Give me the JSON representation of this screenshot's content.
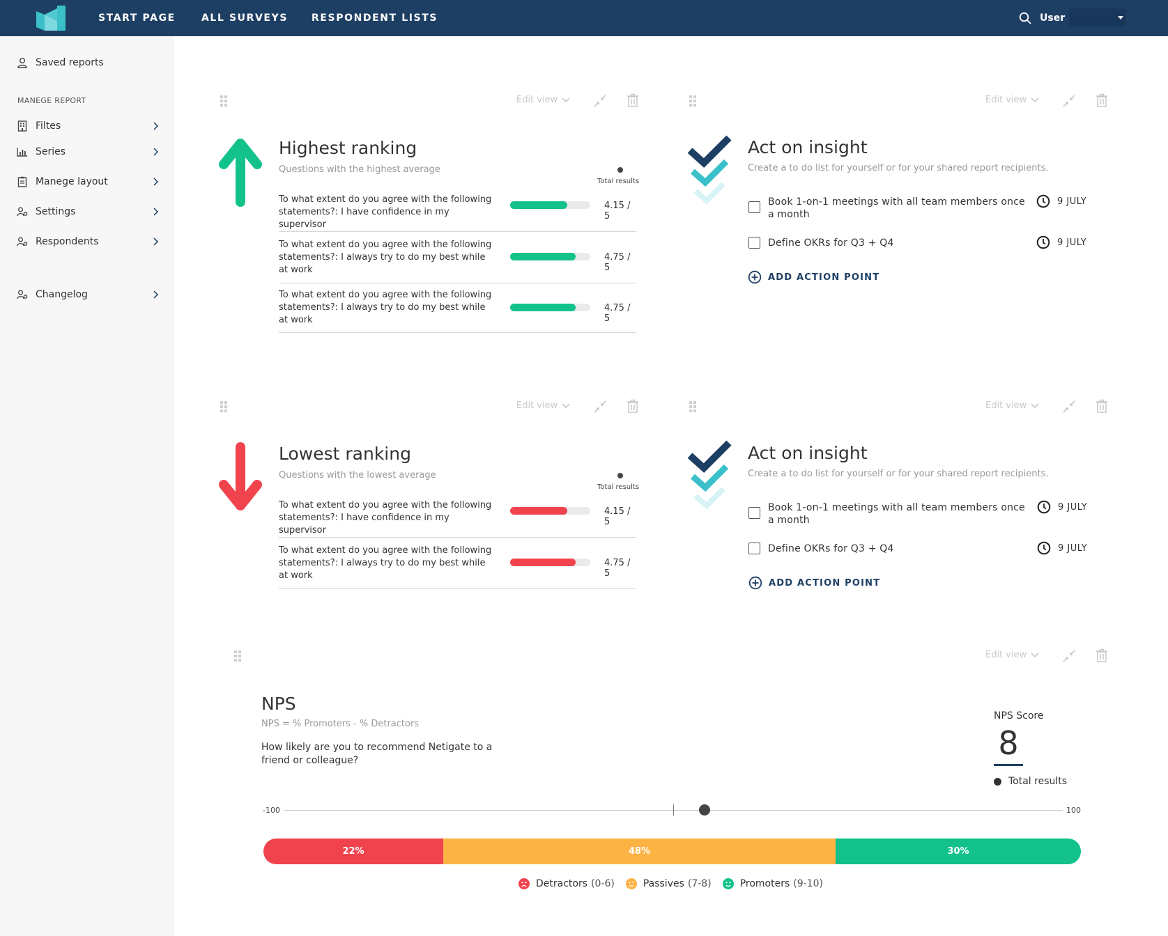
{
  "topnav": {
    "items": [
      "START PAGE",
      "ALL SURVEYS",
      "RESPONDENT LISTS"
    ],
    "user_label": "User"
  },
  "sidebar": {
    "saved_reports": "Saved reports",
    "section_title": "MANEGE REPORT",
    "items": [
      {
        "label": "Filtes",
        "icon": "building-icon"
      },
      {
        "label": "Series",
        "icon": "bar-chart-icon"
      },
      {
        "label": "Manege layout",
        "icon": "clipboard-icon"
      },
      {
        "label": "Settings",
        "icon": "user-settings-icon"
      },
      {
        "label": "Respondents",
        "icon": "user-settings-icon"
      },
      {
        "label": "Changelog",
        "icon": "user-settings-icon"
      }
    ]
  },
  "common": {
    "edit_view": "Edit view",
    "total_results": "Total results"
  },
  "highest": {
    "title": "Highest ranking",
    "subtitle": "Questions with the highest average",
    "rows": [
      {
        "question": "To what extent do you agree with the following statements?: I have confidence in my supervisor",
        "value": "4.15 / 5",
        "score": 4.15
      },
      {
        "question": "To what extent do you agree with the following statements?: I always try to do my best while at work",
        "value": "4.75 / 5",
        "score": 4.75
      },
      {
        "question": "To what extent do you agree with the following statements?: I always try to do my best while at work",
        "value": "4.75 / 5",
        "score": 4.75
      }
    ],
    "color": "#12c28a"
  },
  "lowest": {
    "title": "Lowest ranking",
    "subtitle": "Questions with the lowest average",
    "rows": [
      {
        "question": "To what extent do you agree with the following statements?: I have confidence in my supervisor",
        "value": "4.15 / 5",
        "score": 4.15
      },
      {
        "question": "To what extent do you agree with the following statements?: I always try to do my best while at work",
        "value": "4.75 / 5",
        "score": 4.75
      }
    ],
    "color": "#f0434e"
  },
  "insight": {
    "title": "Act on insight",
    "subtitle": "Create a to do list for yourself or for your shared report recipients.",
    "todos": [
      {
        "text": "Book 1-on-1 meetings with all team members once a month",
        "date": "9 JULY"
      },
      {
        "text": "Define OKRs for Q3 + Q4",
        "date": "9 JULY"
      }
    ],
    "add_label": "ADD ACTION POINT"
  },
  "nps": {
    "title": "NPS",
    "subtitle": "NPS = % Promoters - % Detractors",
    "question": "How likely are you to recommend Netigate to a friend or colleague?",
    "score_label": "NPS Score",
    "score": "8",
    "total_label": "Total results",
    "scale_min": "-100",
    "scale_max": "100",
    "scale_value": 8,
    "segments": [
      {
        "label": "22%",
        "pct": 22,
        "color": "#f0434e"
      },
      {
        "label": "48%",
        "pct": 48,
        "color": "#fdb244"
      },
      {
        "label": "30%",
        "pct": 30,
        "color": "#12c28a"
      }
    ],
    "legend": [
      {
        "name": "Detractors",
        "range": "(0-6)",
        "color": "#f0434e",
        "icon": "sad-face-icon"
      },
      {
        "name": "Passives",
        "range": "(7-8)",
        "color": "#fdb244",
        "icon": "neutral-face-icon"
      },
      {
        "name": "Promoters",
        "range": "(9-10)",
        "color": "#12c28a",
        "icon": "happy-face-icon"
      }
    ]
  },
  "colors": {
    "navy": "#1e3f64",
    "teal": "#3bc0c9"
  }
}
